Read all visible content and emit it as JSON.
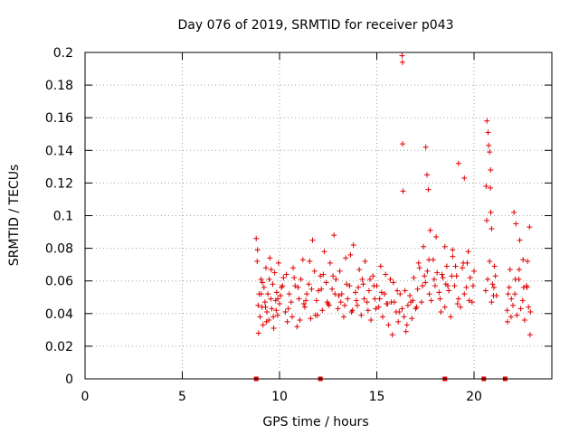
{
  "chart_data": {
    "type": "scatter",
    "title": "Day 076 of 2019, SRMTID for receiver p043",
    "xlabel": "GPS time / hours",
    "ylabel": "SRMTID / TECUs",
    "xlim": [
      0,
      24
    ],
    "ylim": [
      0,
      0.2
    ],
    "xticks": [
      0,
      5,
      10,
      15,
      20
    ],
    "xtick_labels": [
      "0",
      "5",
      "10",
      "15",
      "20"
    ],
    "yticks": [
      0,
      0.02,
      0.04,
      0.06,
      0.08,
      0.1,
      0.12,
      0.14,
      0.16,
      0.18,
      0.2
    ],
    "ytick_labels": [
      "0",
      "0.02",
      "0.04",
      "0.06",
      "0.08",
      "0.1",
      "0.12",
      "0.14",
      "0.16",
      "0.18",
      "0.2"
    ],
    "grid": true,
    "marker": "+",
    "color": "#e00000",
    "series": [
      {
        "name": "SRMTID",
        "x": [
          8.8,
          8.85,
          8.9,
          8.95,
          9.0,
          9.05,
          9.1,
          9.15,
          9.2,
          9.25,
          9.3,
          9.35,
          9.4,
          9.45,
          9.5,
          9.55,
          9.6,
          9.65,
          9.7,
          9.75,
          9.8,
          9.85,
          9.9,
          9.95,
          10.0,
          10.1,
          10.2,
          10.3,
          10.4,
          10.5,
          10.6,
          10.7,
          10.8,
          10.9,
          11.0,
          11.1,
          11.2,
          11.3,
          11.4,
          11.5,
          11.6,
          11.7,
          11.8,
          11.9,
          12.0,
          12.1,
          12.2,
          12.3,
          12.4,
          12.5,
          12.6,
          12.7,
          12.8,
          12.9,
          13.0,
          13.1,
          13.2,
          13.3,
          13.4,
          13.5,
          13.6,
          13.7,
          13.8,
          13.9,
          14.0,
          14.1,
          14.2,
          14.3,
          14.4,
          14.5,
          14.6,
          14.7,
          14.8,
          14.9,
          15.0,
          15.1,
          15.2,
          15.3,
          15.4,
          15.5,
          15.6,
          15.7,
          15.8,
          15.9,
          16.0,
          16.1,
          16.2,
          16.3,
          16.4,
          16.5,
          16.6,
          16.7,
          16.8,
          16.9,
          17.0,
          17.1,
          17.2,
          17.3,
          17.4,
          17.5,
          17.6,
          17.7,
          17.8,
          17.9,
          18.0,
          18.1,
          18.2,
          18.3,
          18.4,
          18.5,
          18.6,
          18.7,
          18.8,
          18.9,
          19.0,
          19.1,
          19.2,
          19.3,
          19.4,
          19.5,
          19.6,
          19.7,
          19.8,
          19.9,
          20.0,
          20.6,
          20.7,
          20.8,
          20.9,
          21.0,
          21.1,
          21.7,
          21.8,
          21.9,
          22.0,
          22.1,
          22.2,
          22.3,
          22.4,
          22.5,
          22.6,
          22.7,
          22.8,
          22.9,
          8.87,
          8.92,
          9.12,
          9.33,
          9.57,
          9.83,
          10.05,
          10.35,
          10.65,
          10.95,
          11.25,
          11.55,
          11.85,
          12.15,
          12.45,
          12.75,
          13.05,
          13.35,
          13.65,
          13.95,
          14.25,
          14.55,
          14.85,
          15.15,
          15.45,
          15.75,
          16.05,
          16.3,
          16.32,
          16.33,
          16.35,
          16.55,
          16.85,
          17.15,
          17.45,
          17.52,
          17.58,
          17.65,
          17.75,
          18.05,
          18.35,
          18.5,
          18.65,
          18.9,
          19.05,
          19.2,
          19.5,
          19.65,
          20.62,
          20.66,
          20.72,
          20.75,
          20.8,
          20.84,
          20.86,
          20.9,
          20.95,
          21.05,
          21.15,
          21.75,
          21.85,
          22.05,
          22.15,
          22.35,
          22.55,
          22.75,
          22.85,
          9.06,
          9.28,
          9.47,
          9.68,
          9.91,
          10.15,
          10.45,
          10.75,
          11.05,
          11.35,
          11.65,
          11.95,
          12.25,
          12.55,
          12.85,
          13.15,
          13.45,
          13.75,
          14.05,
          14.35,
          14.65,
          14.95,
          15.25,
          15.55,
          15.85,
          16.15,
          16.45,
          16.75,
          17.05,
          17.35,
          17.68,
          17.95,
          18.25,
          18.55,
          18.85,
          19.15,
          19.45,
          19.75,
          19.95,
          20.65,
          20.85,
          21.02,
          21.72,
          21.92,
          22.12,
          22.32,
          22.52,
          22.72,
          22.88
        ],
        "y": [
          0.086,
          0.072,
          0.045,
          0.052,
          0.038,
          0.061,
          0.044,
          0.033,
          0.056,
          0.047,
          0.068,
          0.041,
          0.052,
          0.036,
          0.074,
          0.049,
          0.043,
          0.058,
          0.031,
          0.065,
          0.048,
          0.053,
          0.039,
          0.071,
          0.046,
          0.056,
          0.062,
          0.041,
          0.035,
          0.052,
          0.047,
          0.068,
          0.057,
          0.032,
          0.049,
          0.061,
          0.073,
          0.044,
          0.052,
          0.058,
          0.037,
          0.085,
          0.066,
          0.048,
          0.054,
          0.063,
          0.042,
          0.078,
          0.059,
          0.046,
          0.071,
          0.055,
          0.088,
          0.061,
          0.043,
          0.066,
          0.052,
          0.038,
          0.074,
          0.049,
          0.057,
          0.041,
          0.082,
          0.053,
          0.045,
          0.067,
          0.039,
          0.058,
          0.072,
          0.047,
          0.054,
          0.036,
          0.063,
          0.049,
          0.057,
          0.044,
          0.069,
          0.038,
          0.052,
          0.046,
          0.033,
          0.061,
          0.027,
          0.047,
          0.041,
          0.035,
          0.052,
          0.043,
          0.038,
          0.029,
          0.045,
          0.051,
          0.037,
          0.062,
          0.043,
          0.055,
          0.068,
          0.047,
          0.081,
          0.059,
          0.066,
          0.052,
          0.048,
          0.073,
          0.057,
          0.065,
          0.053,
          0.041,
          0.062,
          0.044,
          0.069,
          0.054,
          0.038,
          0.075,
          0.057,
          0.063,
          0.049,
          0.044,
          0.068,
          0.052,
          0.056,
          0.078,
          0.062,
          0.047,
          0.066,
          0.054,
          0.061,
          0.072,
          0.047,
          0.051,
          0.063,
          0.042,
          0.056,
          0.038,
          0.045,
          0.052,
          0.039,
          0.061,
          0.043,
          0.048,
          0.036,
          0.057,
          0.044,
          0.041,
          0.079,
          0.028,
          0.059,
          0.035,
          0.067,
          0.042,
          0.051,
          0.064,
          0.038,
          0.056,
          0.046,
          0.072,
          0.039,
          0.055,
          0.047,
          0.063,
          0.051,
          0.045,
          0.076,
          0.048,
          0.061,
          0.042,
          0.057,
          0.049,
          0.064,
          0.047,
          0.054,
          0.198,
          0.194,
          0.144,
          0.115,
          0.033,
          0.048,
          0.071,
          0.063,
          0.142,
          0.125,
          0.116,
          0.091,
          0.087,
          0.064,
          0.081,
          0.057,
          0.079,
          0.069,
          0.132,
          0.123,
          0.071,
          0.118,
          0.158,
          0.151,
          0.143,
          0.139,
          0.117,
          0.102,
          0.092,
          0.058,
          0.069,
          0.051,
          0.052,
          0.067,
          0.102,
          0.095,
          0.085,
          0.056,
          0.072,
          0.093,
          0.052,
          0.044,
          0.061,
          0.038,
          0.049,
          0.057,
          0.043,
          0.062,
          0.036,
          0.048,
          0.055,
          0.039,
          0.064,
          0.045,
          0.052,
          0.047,
          0.058,
          0.042,
          0.056,
          0.049,
          0.061,
          0.043,
          0.053,
          0.046,
          0.059,
          0.041,
          0.054,
          0.047,
          0.044,
          0.057,
          0.073,
          0.061,
          0.049,
          0.058,
          0.063,
          0.046,
          0.071,
          0.048,
          0.057,
          0.097,
          0.128,
          0.056,
          0.035,
          0.049,
          0.061,
          0.067,
          0.073,
          0.056,
          0.027
        ]
      }
    ],
    "baseline_markers_x": [
      8.8,
      12.1,
      18.5,
      20.5,
      21.6
    ]
  }
}
